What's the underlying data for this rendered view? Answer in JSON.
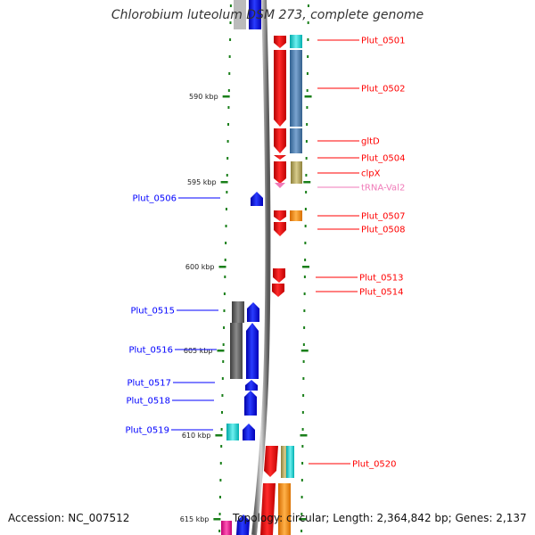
{
  "title": "Chlorobium luteolum DSM 273, complete genome",
  "footer": {
    "accession": "Accession: NC_007512",
    "topology": "Topology: circular; Length: 2,364,842 bp; Genes: 2,137"
  },
  "axis": {
    "major_ticks": [
      {
        "label": "590 kbp"
      },
      {
        "label": "595 kbp"
      },
      {
        "label": "600 kbp"
      },
      {
        "label": "605 kbp"
      },
      {
        "label": "610 kbp"
      },
      {
        "label": "615 kbp"
      }
    ]
  },
  "colors": {
    "forward_strand": "#ff0000",
    "reverse_strand": "#0000ff",
    "trna": "#f07ab8",
    "backbone": "#888888",
    "ticks": "#1a7f1a"
  },
  "genes": [
    {
      "label": "Plut_0501",
      "strand": "forward",
      "color": "#ff0000"
    },
    {
      "label": "Plut_0502",
      "strand": "forward",
      "color": "#ff0000"
    },
    {
      "label": "gltD",
      "strand": "forward",
      "color": "#ff0000"
    },
    {
      "label": "Plut_0504",
      "strand": "forward",
      "color": "#ff0000"
    },
    {
      "label": "clpX",
      "strand": "forward",
      "color": "#ff0000"
    },
    {
      "label": "tRNA-Val2",
      "strand": "forward",
      "color": "#f07ab8"
    },
    {
      "label": "Plut_0506",
      "strand": "reverse",
      "color": "#0000ff"
    },
    {
      "label": "Plut_0507",
      "strand": "forward",
      "color": "#ff0000"
    },
    {
      "label": "Plut_0508",
      "strand": "forward",
      "color": "#ff0000"
    },
    {
      "label": "Plut_0513",
      "strand": "forward",
      "color": "#ff0000"
    },
    {
      "label": "Plut_0514",
      "strand": "forward",
      "color": "#ff0000"
    },
    {
      "label": "Plut_0515",
      "strand": "reverse",
      "color": "#0000ff"
    },
    {
      "label": "Plut_0516",
      "strand": "reverse",
      "color": "#0000ff"
    },
    {
      "label": "Plut_0517",
      "strand": "reverse",
      "color": "#0000ff"
    },
    {
      "label": "Plut_0518",
      "strand": "reverse",
      "color": "#0000ff"
    },
    {
      "label": "Plut_0519",
      "strand": "reverse",
      "color": "#0000ff"
    },
    {
      "label": "Plut_0520",
      "strand": "forward",
      "color": "#ff0000"
    }
  ]
}
